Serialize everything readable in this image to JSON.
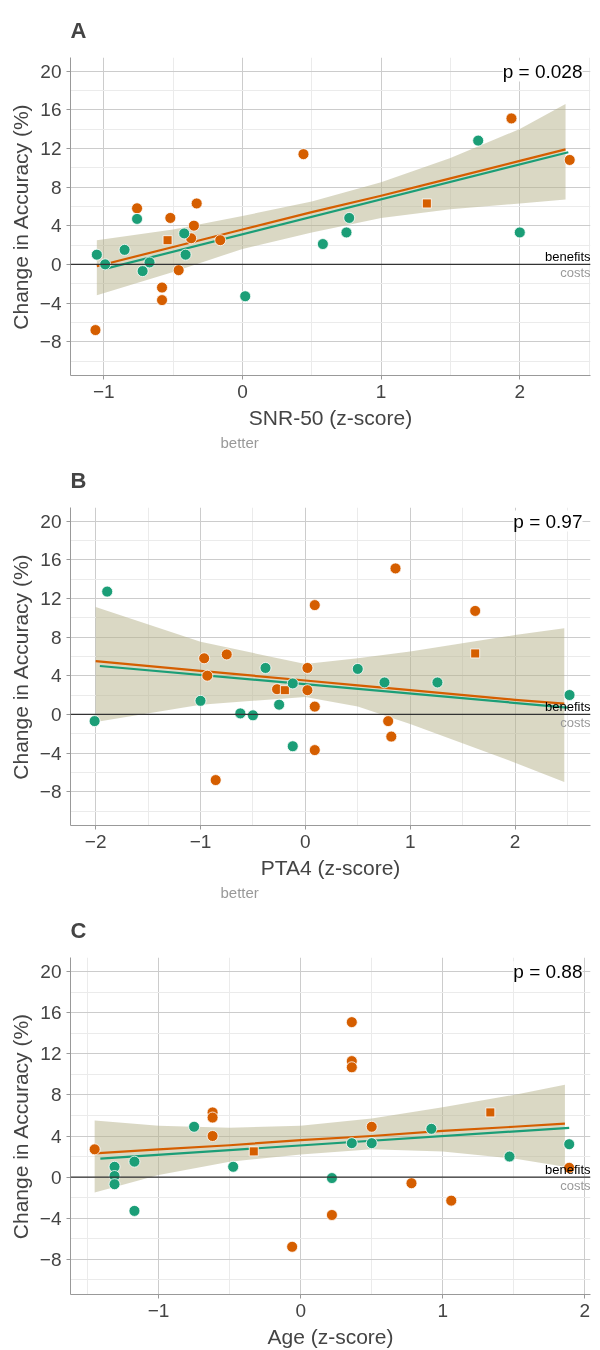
{
  "chart_data": [
    {
      "type": "scatter",
      "title": "A",
      "xlabel": "SNR-50 (z-score)",
      "ylabel": "Change in Accuracy (%)",
      "xlim": [
        -1.24,
        2.51
      ],
      "ylim": [
        -11.5,
        21.4
      ],
      "xticks": [
        -1,
        0,
        1,
        2
      ],
      "yticks": [
        -8,
        -4,
        0,
        4,
        8,
        12,
        16,
        20
      ],
      "grid": true,
      "marker": "circle",
      "annotations": [
        "p = 0.028",
        "better",
        {
          "text": "benefits",
          "x": 2.51,
          "y": 0
        },
        {
          "text": "costs",
          "x": 2.51,
          "y": 0
        }
      ],
      "ref_lines": [
        {
          "axis": "y",
          "value": 0,
          "color": "#333333"
        }
      ],
      "series": [
        {
          "color": "#d55e00",
          "x": [
            -1.06,
            -0.76,
            -0.52,
            -0.58,
            -0.58,
            -0.46,
            -0.33,
            -0.35,
            -0.37,
            -0.16,
            0.44,
            1.94,
            2.36
          ],
          "values": [
            -6.8,
            5.8,
            4.8,
            -2.4,
            -3.7,
            -0.6,
            6.3,
            4.0,
            2.7,
            2.5,
            11.4,
            15.1,
            10.8
          ]
        },
        {
          "marker": "square",
          "color": "#d55e00",
          "x": [
            -0.54,
            1.33
          ],
          "values": [
            2.5,
            6.3
          ]
        },
        {
          "color": "#1b9e77",
          "x": [
            -1.05,
            -0.99,
            -0.85,
            -0.76,
            -0.72,
            -0.67,
            -0.42,
            -0.41,
            0.02,
            0.58,
            0.75,
            0.77,
            1.7,
            2.0
          ],
          "values": [
            1.0,
            0.0,
            1.5,
            4.7,
            -0.7,
            0.2,
            3.2,
            1.0,
            -3.3,
            2.1,
            3.3,
            4.8,
            12.8,
            3.3
          ]
        },
        {
          "type": "line",
          "marker": "none",
          "color": "#d55e00",
          "x": [
            -1.05,
            -0.5,
            0,
            0.5,
            1,
            1.5,
            2,
            2.33
          ],
          "values": [
            -0.2,
            1.8,
            3.6,
            5.4,
            7.1,
            8.9,
            10.7,
            11.9
          ],
          "lower": [
            -3.2,
            -0.8,
            1.6,
            3.3,
            4.8,
            5.7,
            6.3,
            6.7
          ],
          "upper": [
            2.5,
            3.6,
            5.0,
            6.5,
            8.5,
            11.0,
            14.0,
            16.6
          ]
        },
        {
          "type": "line",
          "marker": "none",
          "color": "#1b9e77",
          "x": [
            -1.0,
            2.35
          ],
          "values": [
            -0.5,
            11.6
          ]
        }
      ]
    },
    {
      "type": "scatter",
      "title": "B",
      "xlabel": "PTA4 (z-score)",
      "ylabel": "Change in Accuracy (%)",
      "xlim": [
        -2.24,
        2.72
      ],
      "ylim": [
        -11.5,
        21.4
      ],
      "xticks": [
        -2,
        -1,
        0,
        1,
        2
      ],
      "yticks": [
        -8,
        -4,
        0,
        4,
        8,
        12,
        16,
        20
      ],
      "grid": true,
      "marker": "circle",
      "annotations": [
        "p = 0.97",
        "better",
        {
          "text": "benefits",
          "x": 2.72,
          "y": 0
        },
        {
          "text": "costs",
          "x": 2.72,
          "y": 0
        }
      ],
      "ref_lines": [
        {
          "axis": "y",
          "value": 0,
          "color": "#333333"
        }
      ],
      "series": [
        {
          "color": "#d55e00",
          "x": [
            -0.965,
            -0.935,
            -0.75,
            -0.855,
            -0.27,
            0.02,
            0.02,
            0.09,
            0.09,
            0.09,
            0.86,
            0.79,
            0.82,
            1.62
          ],
          "values": [
            5.8,
            4.0,
            6.2,
            -6.8,
            2.6,
            4.8,
            2.5,
            11.3,
            0.8,
            -3.7,
            15.1,
            -0.7,
            -2.3,
            10.7
          ]
        },
        {
          "marker": "square",
          "color": "#d55e00",
          "x": [
            -0.195,
            1.62
          ],
          "values": [
            2.5,
            6.3
          ]
        },
        {
          "color": "#1b9e77",
          "x": [
            -2.01,
            -1.89,
            -1.0,
            -0.62,
            -0.5,
            -0.38,
            -0.25,
            -0.12,
            -0.12,
            0.5,
            0.755,
            1.26,
            2.52
          ],
          "values": [
            -0.7,
            12.7,
            1.4,
            0.1,
            -0.1,
            4.8,
            1.0,
            3.2,
            -3.3,
            4.7,
            3.3,
            3.3,
            2.0
          ]
        },
        {
          "type": "line",
          "marker": "none",
          "color": "#d55e00",
          "x": [
            -2,
            -1,
            0,
            0.5,
            1,
            2,
            2.47
          ],
          "values": [
            5.5,
            4.5,
            3.5,
            3.0,
            2.5,
            1.5,
            1.1
          ],
          "lower": [
            -0.8,
            1.0,
            1.8,
            0.8,
            -1.0,
            -5.0,
            -7.0
          ],
          "upper": [
            11.1,
            7.5,
            5.2,
            5.8,
            6.5,
            8.2,
            8.9
          ]
        },
        {
          "type": "line",
          "marker": "none",
          "color": "#1b9e77",
          "x": [
            -1.96,
            2.5
          ],
          "values": [
            5.0,
            0.7
          ]
        }
      ]
    },
    {
      "type": "scatter",
      "title": "C",
      "xlabel": "Age (z-score)",
      "ylabel": "Change in Accuracy (%)",
      "xlim": [
        -1.62,
        2.04
      ],
      "ylim": [
        -11.45,
        21.4
      ],
      "xticks": [
        -1,
        0,
        1,
        2
      ],
      "yticks": [
        -8,
        -4,
        0,
        4,
        8,
        12,
        16,
        20
      ],
      "grid": true,
      "marker": "circle",
      "annotations": [
        "p = 0.88",
        {
          "text": "benefits",
          "x": 2.04,
          "y": 0
        },
        {
          "text": "costs",
          "x": 2.04,
          "y": 0
        }
      ],
      "ref_lines": [
        {
          "axis": "y",
          "value": 0,
          "color": "#333333"
        }
      ],
      "series": [
        {
          "color": "#d55e00",
          "x": [
            -1.45,
            -0.62,
            -0.62,
            -0.62,
            -0.06,
            0.22,
            0.36,
            0.36,
            0.36,
            0.5,
            0.78,
            1.06,
            1.89
          ],
          "values": [
            2.7,
            6.3,
            5.8,
            4.0,
            -6.8,
            -3.7,
            15.1,
            11.3,
            10.7,
            4.9,
            -0.6,
            -2.3,
            0.9
          ]
        },
        {
          "marker": "square",
          "color": "#d55e00",
          "x": [
            -0.33,
            1.335
          ],
          "values": [
            2.5,
            6.3
          ]
        },
        {
          "color": "#1b9e77",
          "x": [
            -1.31,
            -1.31,
            -1.31,
            -1.17,
            -1.17,
            -0.75,
            -0.475,
            0.22,
            0.36,
            0.5,
            0.92,
            1.47,
            1.89
          ],
          "values": [
            1.0,
            0.1,
            -0.7,
            1.5,
            -3.3,
            4.9,
            1.0,
            -0.1,
            3.3,
            3.3,
            4.7,
            2.0,
            3.2
          ]
        },
        {
          "type": "line",
          "marker": "none",
          "color": "#d55e00",
          "x": [
            -1.45,
            -1,
            -0.5,
            0,
            0.5,
            1,
            1.5,
            1.86
          ],
          "values": [
            2.3,
            2.7,
            3.1,
            3.6,
            4.0,
            4.5,
            4.9,
            5.2
          ],
          "lower": [
            -1.5,
            0.2,
            1.5,
            2.2,
            2.7,
            2.5,
            1.8,
            1.0
          ],
          "upper": [
            5.5,
            5.0,
            4.8,
            5.0,
            5.7,
            6.8,
            8.0,
            9.0
          ]
        },
        {
          "type": "line",
          "marker": "none",
          "color": "#1b9e77",
          "x": [
            -1.41,
            1.89
          ],
          "values": [
            1.8,
            4.8
          ]
        }
      ]
    }
  ]
}
